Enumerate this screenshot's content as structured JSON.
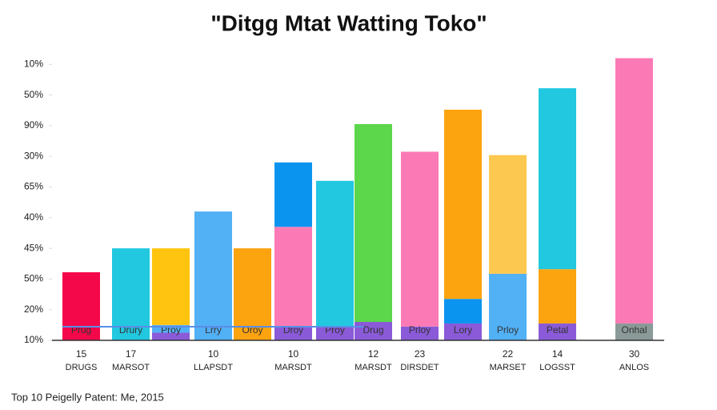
{
  "chart_data": {
    "type": "stacked-bar",
    "title": "\"Ditgg Mtat Watting Toko\"",
    "footer": "Top 10 Peigelly Patent: Me, 2015",
    "ylim": [
      0,
      9.2
    ],
    "yticks": [
      {
        "value": 0,
        "label": "10%"
      },
      {
        "value": 1,
        "label": "20%"
      },
      {
        "value": 2,
        "label": "50%"
      },
      {
        "value": 3,
        "label": "45%"
      },
      {
        "value": 4,
        "label": "40%"
      },
      {
        "value": 5,
        "label": "65%"
      },
      {
        "value": 6,
        "label": "30%"
      },
      {
        "value": 7,
        "label": "90%"
      },
      {
        "value": 8,
        "label": "50%"
      },
      {
        "value": 9,
        "label": "10%"
      }
    ],
    "bars": [
      {
        "label": "Prug",
        "segments": [
          {
            "value": 2.22,
            "color": "#f5084a"
          }
        ]
      },
      {
        "label": "Drury",
        "segments": [
          {
            "value": 3.0,
            "color": "#22c8e0"
          }
        ]
      },
      {
        "label": "Proy",
        "segments": [
          {
            "value": 0.25,
            "color": "#8a5ad8"
          },
          {
            "value": 0.25,
            "color": "#52b0f5"
          },
          {
            "value": 2.5,
            "color": "#fec40f"
          }
        ]
      },
      {
        "label": "Lrry",
        "segments": [
          {
            "value": 4.2,
            "color": "#52b0f5"
          }
        ]
      },
      {
        "label": "Oroy",
        "segments": [
          {
            "value": 3.0,
            "color": "#fca310"
          }
        ]
      },
      {
        "label": "Droy",
        "segments": [
          {
            "value": 0.45,
            "color": "#8a5ad8"
          },
          {
            "value": 3.25,
            "color": "#fb7ab5"
          },
          {
            "value": 2.1,
            "color": "#0a94f0"
          }
        ]
      },
      {
        "label": "Proy",
        "segments": [
          {
            "value": 0.45,
            "color": "#8a5ad8"
          },
          {
            "value": 4.75,
            "color": "#22c8e0"
          }
        ]
      },
      {
        "label": "Drug",
        "segments": [
          {
            "value": 0.6,
            "color": "#8a5ad8"
          },
          {
            "value": 6.45,
            "color": "#5cd64a"
          }
        ]
      },
      {
        "label": "Prloy",
        "segments": [
          {
            "value": 0.45,
            "color": "#8a5ad8"
          },
          {
            "value": 5.7,
            "color": "#fb7ab5"
          }
        ]
      },
      {
        "label": "Lory",
        "segments": [
          {
            "value": 0.55,
            "color": "#8a5ad8"
          },
          {
            "value": 0.8,
            "color": "#0a94f0"
          },
          {
            "value": 6.17,
            "color": "#fca310"
          }
        ]
      },
      {
        "label": "Prloy",
        "segments": [
          {
            "value": 2.17,
            "color": "#52b0f5"
          },
          {
            "value": 3.87,
            "color": "#fdc850"
          }
        ]
      },
      {
        "label": "Petal",
        "segments": [
          {
            "value": 0.55,
            "color": "#8a5ad8"
          },
          {
            "value": 1.77,
            "color": "#fca310"
          },
          {
            "value": 5.9,
            "color": "#22c8e0"
          }
        ]
      },
      {
        "label": "Onhal",
        "segments": [
          {
            "value": 0.55,
            "color": "#8a9a98"
          },
          {
            "value": 8.65,
            "color": "#fb7ab5"
          }
        ]
      }
    ],
    "x_labels": [
      {
        "number": "15",
        "text": "DRUGS"
      },
      {
        "number": "17",
        "text": "MARSOT"
      },
      {
        "number": "10",
        "text": "LLAPSDT"
      },
      {
        "number": "10",
        "text": "MARSDT"
      },
      {
        "number": "12",
        "text": "MARSDT"
      },
      {
        "number": "23",
        "text": "DIRSDET"
      },
      {
        "number": "22",
        "text": "MARSET"
      },
      {
        "number": "14",
        "text": "LOGSST"
      },
      {
        "number": "30",
        "text": "ANLOS"
      }
    ]
  }
}
